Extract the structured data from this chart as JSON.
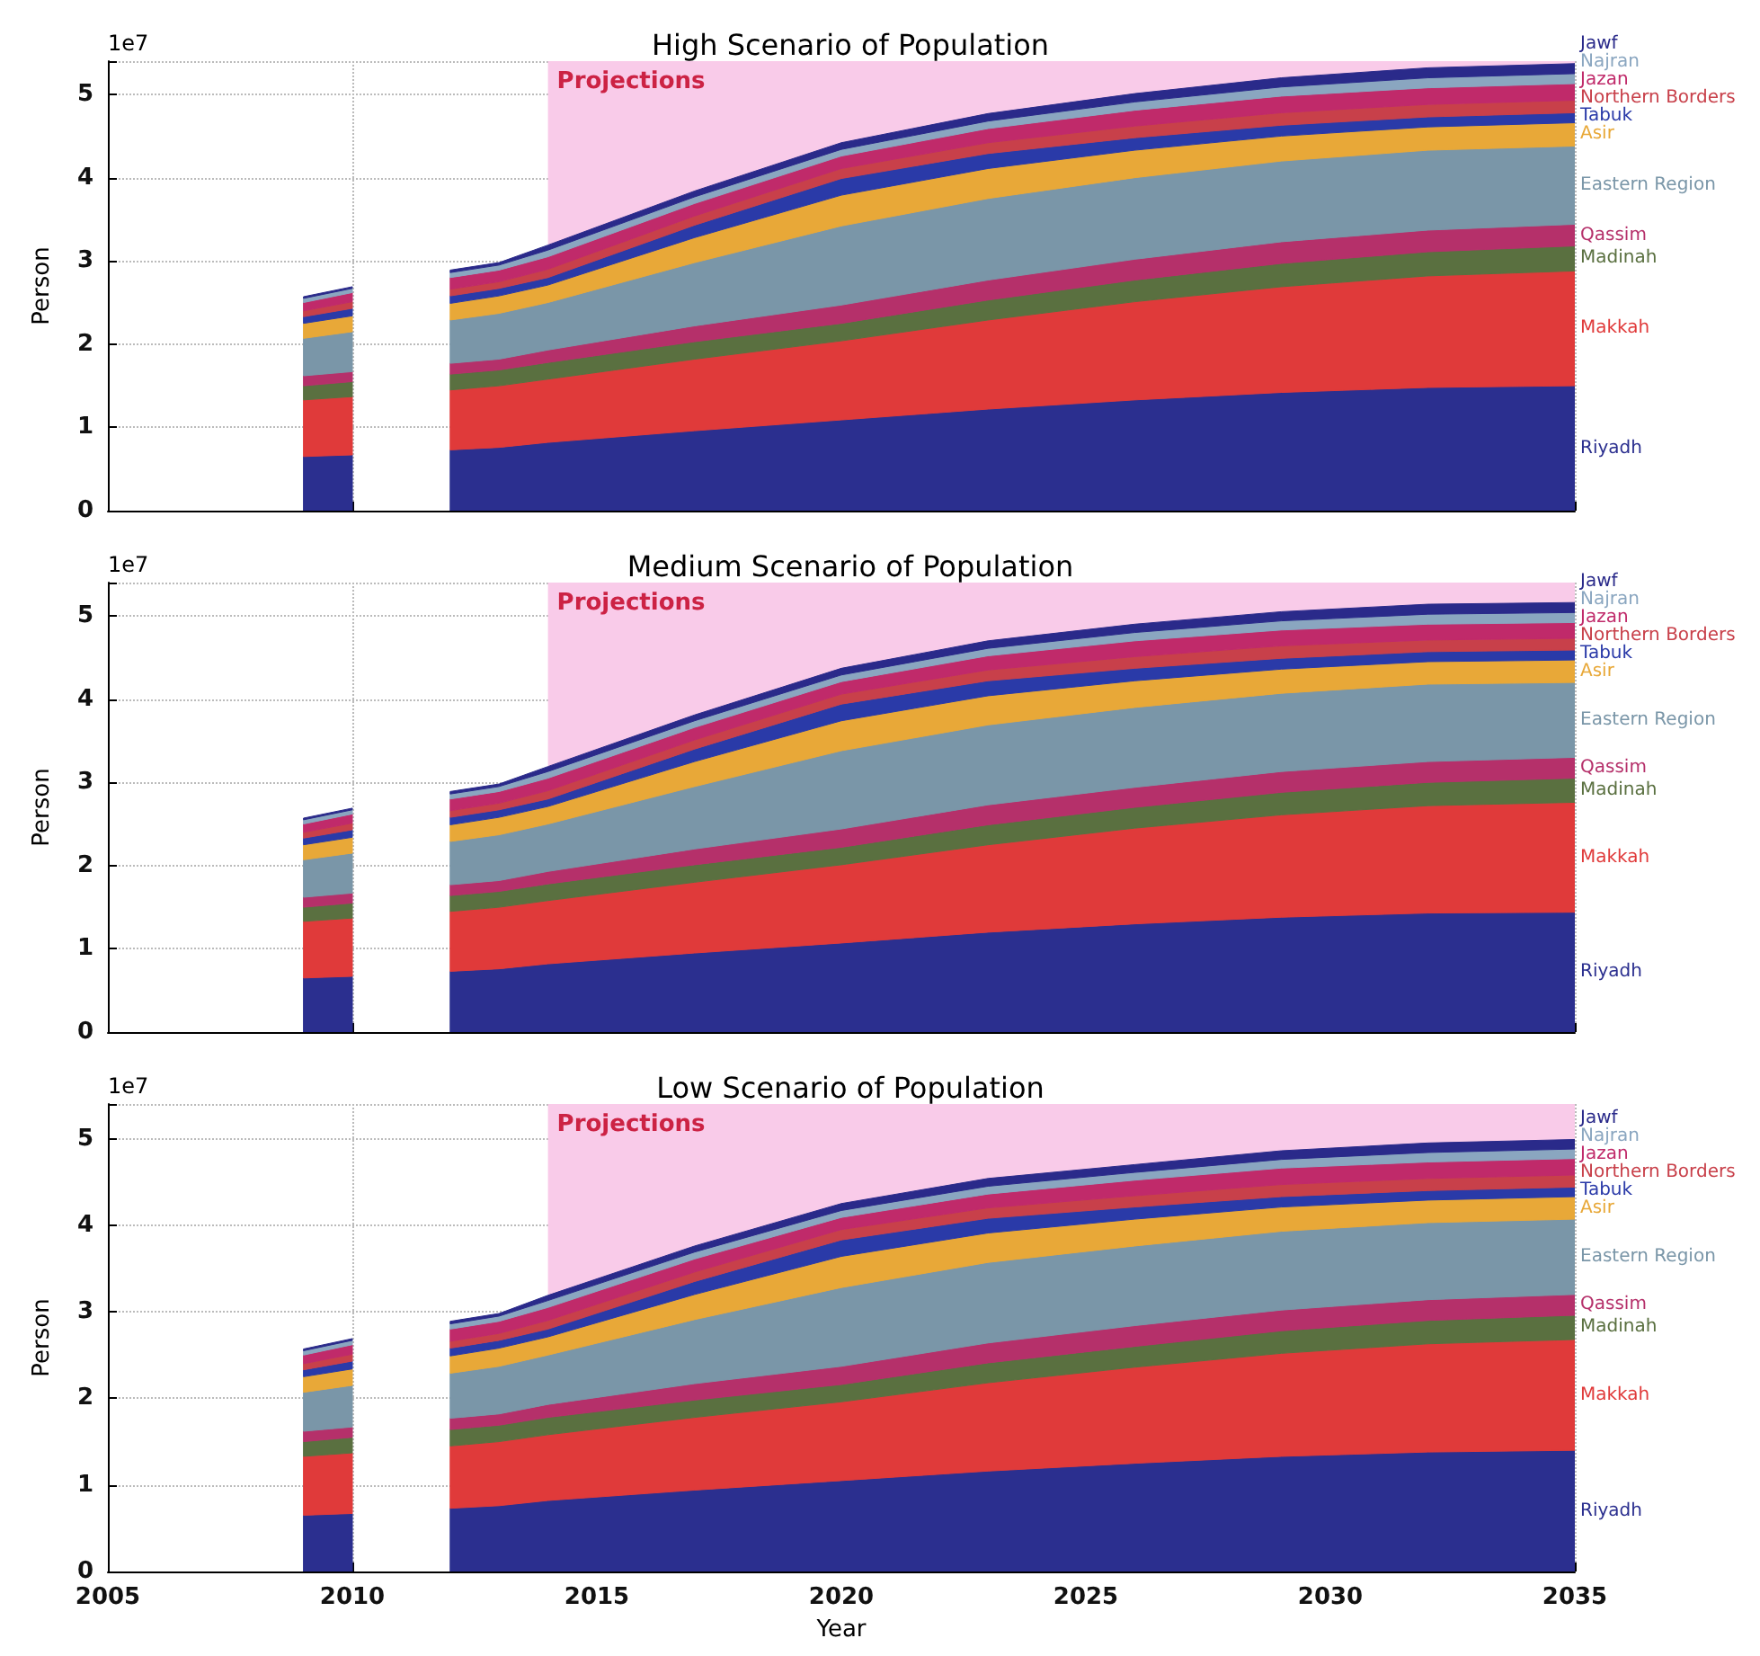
{
  "chart_data": [
    {
      "type": "area",
      "stacked": true,
      "title": "High Scenario of Population",
      "ylabel": "Person",
      "annotations": [
        "1e7"
      ],
      "tick_labels": "y",
      "grid": true,
      "x": [
        2009,
        2010,
        2011,
        2012,
        2013,
        2014,
        2017,
        2020,
        2023,
        2026,
        2029,
        2032,
        2035
      ],
      "xlim": [
        2005,
        2035
      ],
      "xticks": [
        2005,
        2010,
        2015,
        2020,
        2025,
        2030,
        2035
      ],
      "ylim": [
        0,
        5.4
      ],
      "yticks": [
        0,
        1,
        2,
        3,
        4,
        5
      ],
      "bands": [
        {
          "axis": "x",
          "from": 2014,
          "to": 2035,
          "label": "Projections",
          "color": "#f9cbe9"
        }
      ],
      "series": [
        {
          "name": "Riyadh",
          "color": "#2b2f8f",
          "values": [
            0.65,
            0.67,
            null,
            0.73,
            0.76,
            0.82,
            0.96,
            1.09,
            1.22,
            1.33,
            1.42,
            1.48,
            1.5
          ]
        },
        {
          "name": "Makkah",
          "color": "#e03a3a",
          "values": [
            0.68,
            0.7,
            null,
            0.72,
            0.74,
            0.76,
            0.86,
            0.95,
            1.07,
            1.18,
            1.27,
            1.34,
            1.38
          ]
        },
        {
          "name": "Madinah",
          "color": "#5a7040",
          "values": [
            0.17,
            0.18,
            null,
            0.19,
            0.19,
            0.2,
            0.21,
            0.21,
            0.24,
            0.26,
            0.28,
            0.29,
            0.3
          ]
        },
        {
          "name": "Qassim",
          "color": "#b5306a",
          "values": [
            0.12,
            0.12,
            null,
            0.13,
            0.13,
            0.15,
            0.19,
            0.22,
            0.24,
            0.25,
            0.26,
            0.26,
            0.26
          ]
        },
        {
          "name": "Eastern Region",
          "color": "#7a96a8",
          "values": [
            0.45,
            0.48,
            null,
            0.52,
            0.55,
            0.57,
            0.76,
            0.95,
            0.98,
            0.98,
            0.97,
            0.96,
            0.94
          ]
        },
        {
          "name": "Asir",
          "color": "#e8a838",
          "values": [
            0.18,
            0.19,
            null,
            0.2,
            0.21,
            0.21,
            0.3,
            0.37,
            0.36,
            0.33,
            0.3,
            0.28,
            0.28
          ]
        },
        {
          "name": "Tabuk",
          "color": "#2a3aa8",
          "values": [
            0.08,
            0.09,
            null,
            0.09,
            0.09,
            0.09,
            0.15,
            0.2,
            0.18,
            0.15,
            0.13,
            0.12,
            0.12
          ]
        },
        {
          "name": "Northern Borders",
          "color": "#c8404a",
          "values": [
            0.07,
            0.08,
            null,
            0.08,
            0.08,
            0.1,
            0.11,
            0.12,
            0.13,
            0.14,
            0.15,
            0.15,
            0.15
          ]
        },
        {
          "name": "Jazan",
          "color": "#c02a6a",
          "values": [
            0.1,
            0.11,
            null,
            0.14,
            0.14,
            0.15,
            0.15,
            0.15,
            0.17,
            0.19,
            0.2,
            0.2,
            0.2
          ]
        },
        {
          "name": "Najran",
          "color": "#8aa6c0",
          "values": [
            0.05,
            0.05,
            null,
            0.06,
            0.06,
            0.08,
            0.08,
            0.08,
            0.09,
            0.1,
            0.11,
            0.12,
            0.12
          ]
        },
        {
          "name": "Jawf",
          "color": "#2a2a8a",
          "values": [
            0.02,
            0.02,
            null,
            0.03,
            0.03,
            0.06,
            0.07,
            0.08,
            0.09,
            0.1,
            0.11,
            0.12,
            0.12
          ]
        }
      ]
    },
    {
      "type": "area",
      "stacked": true,
      "title": "Medium Scenario of Population",
      "ylabel": "Person",
      "annotations": [
        "1e7"
      ],
      "tick_labels": "y",
      "grid": true,
      "x": [
        2009,
        2010,
        2011,
        2012,
        2013,
        2014,
        2017,
        2020,
        2023,
        2026,
        2029,
        2032,
        2035
      ],
      "xlim": [
        2005,
        2035
      ],
      "xticks": [
        2005,
        2010,
        2015,
        2020,
        2025,
        2030,
        2035
      ],
      "ylim": [
        0,
        5.4
      ],
      "yticks": [
        0,
        1,
        2,
        3,
        4,
        5
      ],
      "bands": [
        {
          "axis": "x",
          "from": 2014,
          "to": 2035,
          "label": "Projections",
          "color": "#f9cbe9"
        }
      ],
      "series": [
        {
          "name": "Riyadh",
          "color": "#2b2f8f",
          "values": [
            0.65,
            0.67,
            null,
            0.73,
            0.76,
            0.82,
            0.95,
            1.07,
            1.2,
            1.3,
            1.38,
            1.43,
            1.44
          ]
        },
        {
          "name": "Makkah",
          "color": "#e03a3a",
          "values": [
            0.68,
            0.7,
            null,
            0.72,
            0.74,
            0.76,
            0.85,
            0.94,
            1.05,
            1.15,
            1.23,
            1.29,
            1.32
          ]
        },
        {
          "name": "Madinah",
          "color": "#5a7040",
          "values": [
            0.17,
            0.18,
            null,
            0.19,
            0.19,
            0.2,
            0.21,
            0.21,
            0.24,
            0.25,
            0.27,
            0.28,
            0.29
          ]
        },
        {
          "name": "Qassim",
          "color": "#b5306a",
          "values": [
            0.12,
            0.12,
            null,
            0.13,
            0.13,
            0.15,
            0.19,
            0.22,
            0.24,
            0.24,
            0.25,
            0.25,
            0.25
          ]
        },
        {
          "name": "Eastern Region",
          "color": "#7a96a8",
          "values": [
            0.45,
            0.48,
            null,
            0.52,
            0.55,
            0.57,
            0.75,
            0.94,
            0.96,
            0.96,
            0.94,
            0.93,
            0.9
          ]
        },
        {
          "name": "Asir",
          "color": "#e8a838",
          "values": [
            0.18,
            0.19,
            null,
            0.2,
            0.21,
            0.21,
            0.3,
            0.36,
            0.35,
            0.32,
            0.29,
            0.27,
            0.27
          ]
        },
        {
          "name": "Tabuk",
          "color": "#2a3aa8",
          "values": [
            0.08,
            0.09,
            null,
            0.09,
            0.09,
            0.09,
            0.15,
            0.2,
            0.18,
            0.15,
            0.13,
            0.12,
            0.12
          ]
        },
        {
          "name": "Northern Borders",
          "color": "#c8404a",
          "values": [
            0.07,
            0.08,
            null,
            0.08,
            0.08,
            0.1,
            0.11,
            0.12,
            0.13,
            0.14,
            0.15,
            0.14,
            0.14
          ]
        },
        {
          "name": "Jazan",
          "color": "#c02a6a",
          "values": [
            0.1,
            0.11,
            null,
            0.14,
            0.14,
            0.15,
            0.15,
            0.15,
            0.17,
            0.19,
            0.19,
            0.19,
            0.19
          ]
        },
        {
          "name": "Najran",
          "color": "#8aa6c0",
          "values": [
            0.05,
            0.05,
            null,
            0.06,
            0.06,
            0.08,
            0.08,
            0.08,
            0.09,
            0.1,
            0.11,
            0.12,
            0.12
          ]
        },
        {
          "name": "Jawf",
          "color": "#2a2a8a",
          "values": [
            0.02,
            0.02,
            null,
            0.03,
            0.03,
            0.06,
            0.07,
            0.08,
            0.09,
            0.1,
            0.11,
            0.12,
            0.12
          ]
        }
      ]
    },
    {
      "type": "area",
      "stacked": true,
      "title": "Low Scenario of Population",
      "xlabel": "Year",
      "ylabel": "Person",
      "annotations": [
        "1e7"
      ],
      "grid": true,
      "x": [
        2009,
        2010,
        2011,
        2012,
        2013,
        2014,
        2017,
        2020,
        2023,
        2026,
        2029,
        2032,
        2035
      ],
      "xlim": [
        2005,
        2035
      ],
      "xticks": [
        2005,
        2010,
        2015,
        2020,
        2025,
        2030,
        2035
      ],
      "ylim": [
        0,
        5.4
      ],
      "yticks": [
        0,
        1,
        2,
        3,
        4,
        5
      ],
      "bands": [
        {
          "axis": "x",
          "from": 2014,
          "to": 2035,
          "label": "Projections",
          "color": "#f9cbe9"
        }
      ],
      "series": [
        {
          "name": "Riyadh",
          "color": "#2b2f8f",
          "values": [
            0.65,
            0.67,
            null,
            0.73,
            0.76,
            0.82,
            0.94,
            1.05,
            1.16,
            1.25,
            1.33,
            1.38,
            1.4
          ]
        },
        {
          "name": "Makkah",
          "color": "#e03a3a",
          "values": [
            0.68,
            0.7,
            null,
            0.72,
            0.74,
            0.76,
            0.84,
            0.91,
            1.02,
            1.11,
            1.19,
            1.25,
            1.28
          ]
        },
        {
          "name": "Madinah",
          "color": "#5a7040",
          "values": [
            0.17,
            0.18,
            null,
            0.19,
            0.19,
            0.2,
            0.2,
            0.2,
            0.23,
            0.24,
            0.26,
            0.27,
            0.28
          ]
        },
        {
          "name": "Qassim",
          "color": "#b5306a",
          "values": [
            0.12,
            0.12,
            null,
            0.13,
            0.13,
            0.15,
            0.19,
            0.21,
            0.23,
            0.24,
            0.24,
            0.24,
            0.24
          ]
        },
        {
          "name": "Eastern Region",
          "color": "#7a96a8",
          "values": [
            0.45,
            0.48,
            null,
            0.52,
            0.55,
            0.57,
            0.74,
            0.91,
            0.93,
            0.92,
            0.91,
            0.89,
            0.87
          ]
        },
        {
          "name": "Asir",
          "color": "#e8a838",
          "values": [
            0.18,
            0.19,
            null,
            0.2,
            0.21,
            0.21,
            0.29,
            0.36,
            0.34,
            0.31,
            0.28,
            0.26,
            0.26
          ]
        },
        {
          "name": "Tabuk",
          "color": "#2a3aa8",
          "values": [
            0.08,
            0.09,
            null,
            0.09,
            0.09,
            0.09,
            0.15,
            0.19,
            0.17,
            0.14,
            0.12,
            0.11,
            0.11
          ]
        },
        {
          "name": "Northern Borders",
          "color": "#c8404a",
          "values": [
            0.07,
            0.08,
            null,
            0.08,
            0.08,
            0.1,
            0.11,
            0.12,
            0.12,
            0.13,
            0.14,
            0.14,
            0.14
          ]
        },
        {
          "name": "Jazan",
          "color": "#c02a6a",
          "values": [
            0.1,
            0.11,
            null,
            0.14,
            0.14,
            0.15,
            0.15,
            0.14,
            0.16,
            0.18,
            0.19,
            0.19,
            0.19
          ]
        },
        {
          "name": "Najran",
          "color": "#8aa6c0",
          "values": [
            0.05,
            0.05,
            null,
            0.06,
            0.06,
            0.08,
            0.08,
            0.08,
            0.09,
            0.09,
            0.1,
            0.11,
            0.11
          ]
        },
        {
          "name": "Jawf",
          "color": "#2a2a8a",
          "values": [
            0.02,
            0.02,
            null,
            0.03,
            0.03,
            0.06,
            0.07,
            0.08,
            0.09,
            0.09,
            0.1,
            0.11,
            0.11
          ]
        }
      ]
    }
  ]
}
